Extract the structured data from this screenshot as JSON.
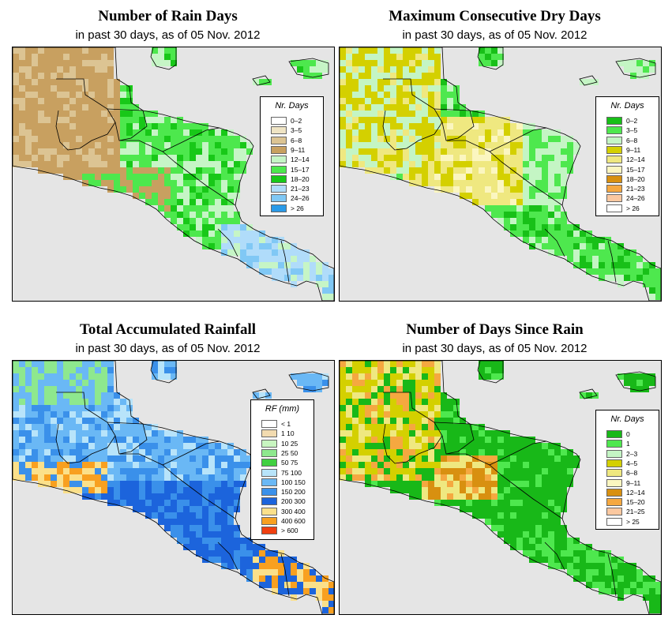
{
  "panels": [
    {
      "title": "Number of Rain Days",
      "subtitle": "in past 30 days, as of  05 Nov. 2012",
      "legend_title": "Nr. Days",
      "legend": [
        {
          "label": "0–2",
          "color": "#ffffff"
        },
        {
          "label": "3–5",
          "color": "#efe4c4"
        },
        {
          "label": "6–8",
          "color": "#dcc493"
        },
        {
          "label": "9–11",
          "color": "#c8a060"
        },
        {
          "label": "12–14",
          "color": "#c6f5c6"
        },
        {
          "label": "15–17",
          "color": "#4de84d"
        },
        {
          "label": "18–20",
          "color": "#18c818"
        },
        {
          "label": "21–23",
          "color": "#b0dcfa"
        },
        {
          "label": "24–26",
          "color": "#80c8f5"
        },
        {
          "label": "> 26",
          "color": "#2a9ae8"
        }
      ]
    },
    {
      "title": "Maximum Consecutive Dry Days",
      "subtitle": "in past 30 days, as of  05 Nov. 2012",
      "legend_title": "Nr. Days",
      "legend": [
        {
          "label": "0–2",
          "color": "#18c018"
        },
        {
          "label": "3–5",
          "color": "#4ee84e"
        },
        {
          "label": "6–8",
          "color": "#c4f5c4"
        },
        {
          "label": "9–11",
          "color": "#d4d000"
        },
        {
          "label": "12–14",
          "color": "#efe880"
        },
        {
          "label": "15–17",
          "color": "#fbf6c0"
        },
        {
          "label": "18–20",
          "color": "#d89010"
        },
        {
          "label": "21–23",
          "color": "#f5a840"
        },
        {
          "label": "24–26",
          "color": "#fbc8a0"
        },
        {
          "label": "> 26",
          "color": "#ffffff"
        }
      ]
    },
    {
      "title": "Total Accumulated Rainfall",
      "subtitle": "in past 30 days, as of  05 Nov. 2012",
      "legend_title": "RF (mm)",
      "legend": [
        {
          "label": "< 1",
          "color": "#ffffff"
        },
        {
          "label": "1   10",
          "color": "#f2dbb0"
        },
        {
          "label": "10   25",
          "color": "#c8f5c0"
        },
        {
          "label": "25   50",
          "color": "#8ee88e"
        },
        {
          "label": "50   75",
          "color": "#40d040"
        },
        {
          "label": "75   100",
          "color": "#b8e4fa"
        },
        {
          "label": "100   150",
          "color": "#6ab8f5"
        },
        {
          "label": "150   200",
          "color": "#3a90ea"
        },
        {
          "label": "200   300",
          "color": "#1c64dc"
        },
        {
          "label": "300   400",
          "color": "#fbe08a"
        },
        {
          "label": "400   600",
          "color": "#f8a020"
        },
        {
          "label": "> 600",
          "color": "#f04010"
        }
      ]
    },
    {
      "title": "Number of Days Since Rain",
      "subtitle": "in past 30 days, as of  05 Nov. 2012",
      "legend_title": "Nr. Days",
      "legend": [
        {
          "label": "0",
          "color": "#18b818"
        },
        {
          "label": "1",
          "color": "#4ee84e"
        },
        {
          "label": "2–3",
          "color": "#c4f5c4"
        },
        {
          "label": "4–5",
          "color": "#d4d000"
        },
        {
          "label": "6–8",
          "color": "#efe880"
        },
        {
          "label": "9–11",
          "color": "#fbf6c0"
        },
        {
          "label": "12–14",
          "color": "#d89010"
        },
        {
          "label": "15–20",
          "color": "#f5a840"
        },
        {
          "label": "21–25",
          "color": "#fbc8a0"
        },
        {
          "label": "> 25",
          "color": "#ffffff"
        }
      ]
    }
  ],
  "colors": {
    "sea": "#e5e5e5",
    "border_line": "#000000"
  }
}
